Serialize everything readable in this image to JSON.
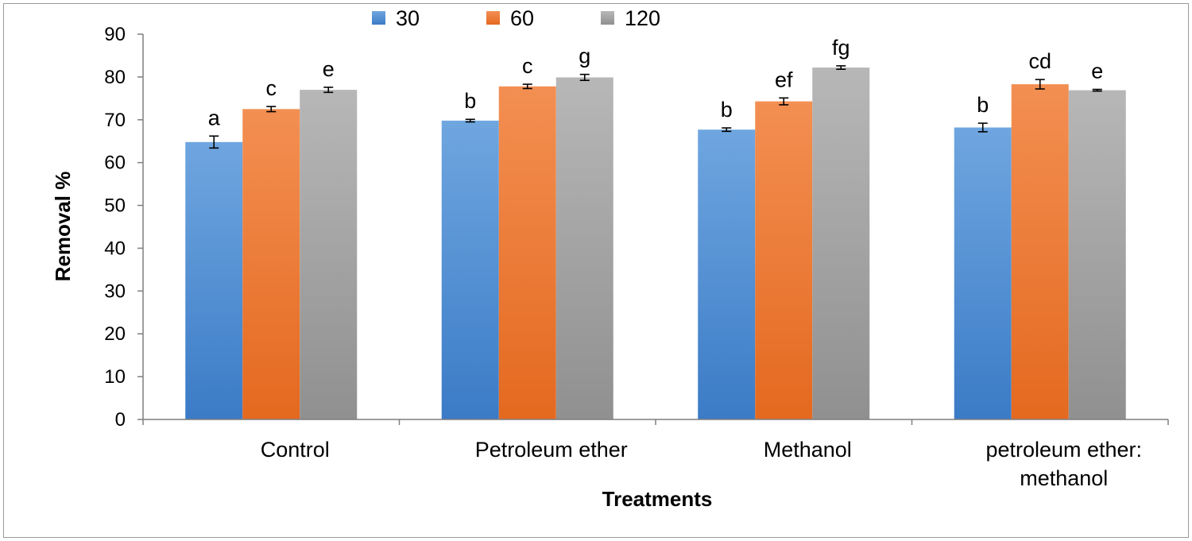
{
  "chart_data": {
    "type": "bar",
    "xlabel": "Treatments",
    "ylabel": "Removal %",
    "ylim": [
      0,
      90
    ],
    "yticks": [
      "0",
      "10",
      "20",
      "30",
      "40",
      "50",
      "60",
      "70",
      "80",
      "90"
    ],
    "grid": false,
    "legend_position": "top",
    "categories": [
      [
        "Control"
      ],
      [
        "Petroleum  ether"
      ],
      [
        "Methanol"
      ],
      [
        "petroleum ether:",
        "methanol"
      ]
    ],
    "series": [
      {
        "name": "30",
        "color": "#4a8bd0",
        "values": [
          64.8,
          69.8,
          67.7,
          68.2
        ],
        "errors": [
          1.4,
          0.3,
          0.4,
          1.0
        ],
        "letters": [
          "a",
          "b",
          "b",
          "b"
        ]
      },
      {
        "name": "60",
        "color": "#ef7a2e",
        "values": [
          72.5,
          77.8,
          74.3,
          78.3
        ],
        "errors": [
          0.6,
          0.5,
          0.8,
          1.1
        ],
        "letters": [
          "c",
          "c",
          "ef",
          "cd"
        ]
      },
      {
        "name": "120",
        "color": "#a5a5a5",
        "values": [
          77.0,
          79.9,
          82.2,
          76.9
        ],
        "errors": [
          0.6,
          0.7,
          0.4,
          0.2
        ],
        "letters": [
          "e",
          "g",
          "fg",
          "e"
        ]
      }
    ]
  }
}
